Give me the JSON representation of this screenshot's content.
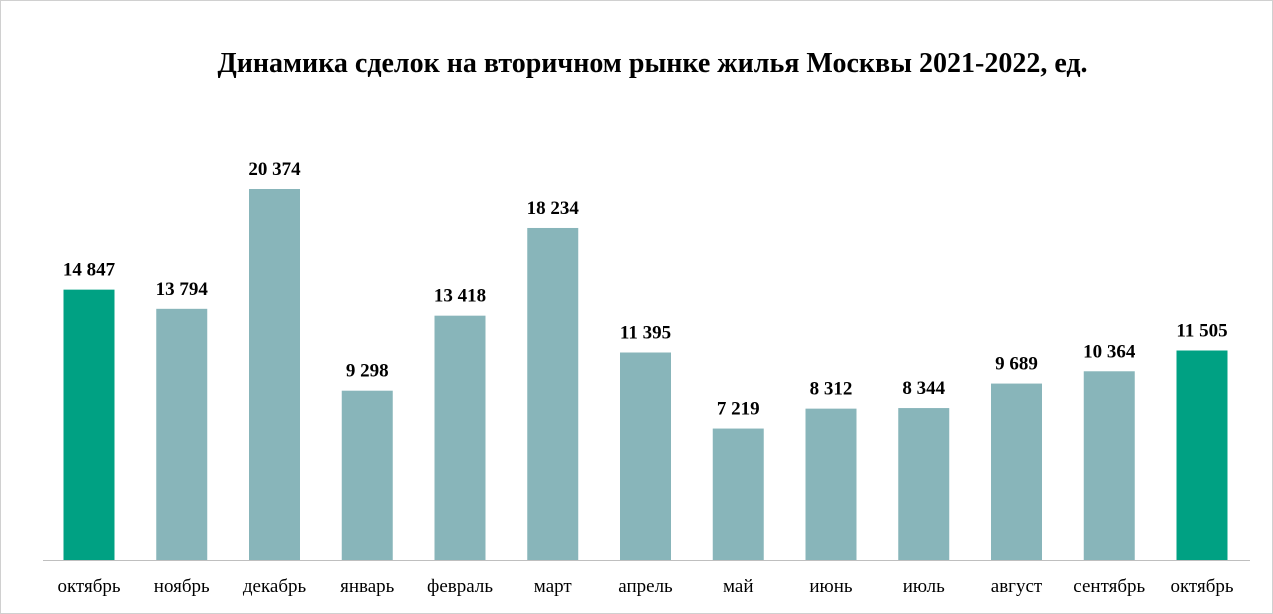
{
  "chart_data": {
    "type": "bar",
    "title": "Динамика сделок на вторичном рынке жилья Москвы 2021-2022, ед.",
    "xlabel": "",
    "ylabel": "",
    "categories": [
      "октябрь",
      "ноябрь",
      "декабрь",
      "январь",
      "февраль",
      "март",
      "апрель",
      "май",
      "июнь",
      "июль",
      "август",
      "сентябрь",
      "октябрь"
    ],
    "values": [
      14847,
      13794,
      20374,
      9298,
      13418,
      18234,
      11395,
      7219,
      8312,
      8344,
      9689,
      10364,
      11505
    ],
    "value_labels": [
      "14 847",
      "13 794",
      "20 374",
      "9 298",
      "13 418",
      "18 234",
      "11 395",
      "7 219",
      "8 312",
      "8 344",
      "9 689",
      "10 364",
      "11 505"
    ],
    "ylim": [
      0,
      20374
    ],
    "grid": false,
    "legend": "none",
    "colors": {
      "highlight": "#00A183",
      "default": "#88B5BA",
      "axis": "#BFBFBF"
    },
    "highlighted_indices": [
      0,
      12
    ]
  }
}
